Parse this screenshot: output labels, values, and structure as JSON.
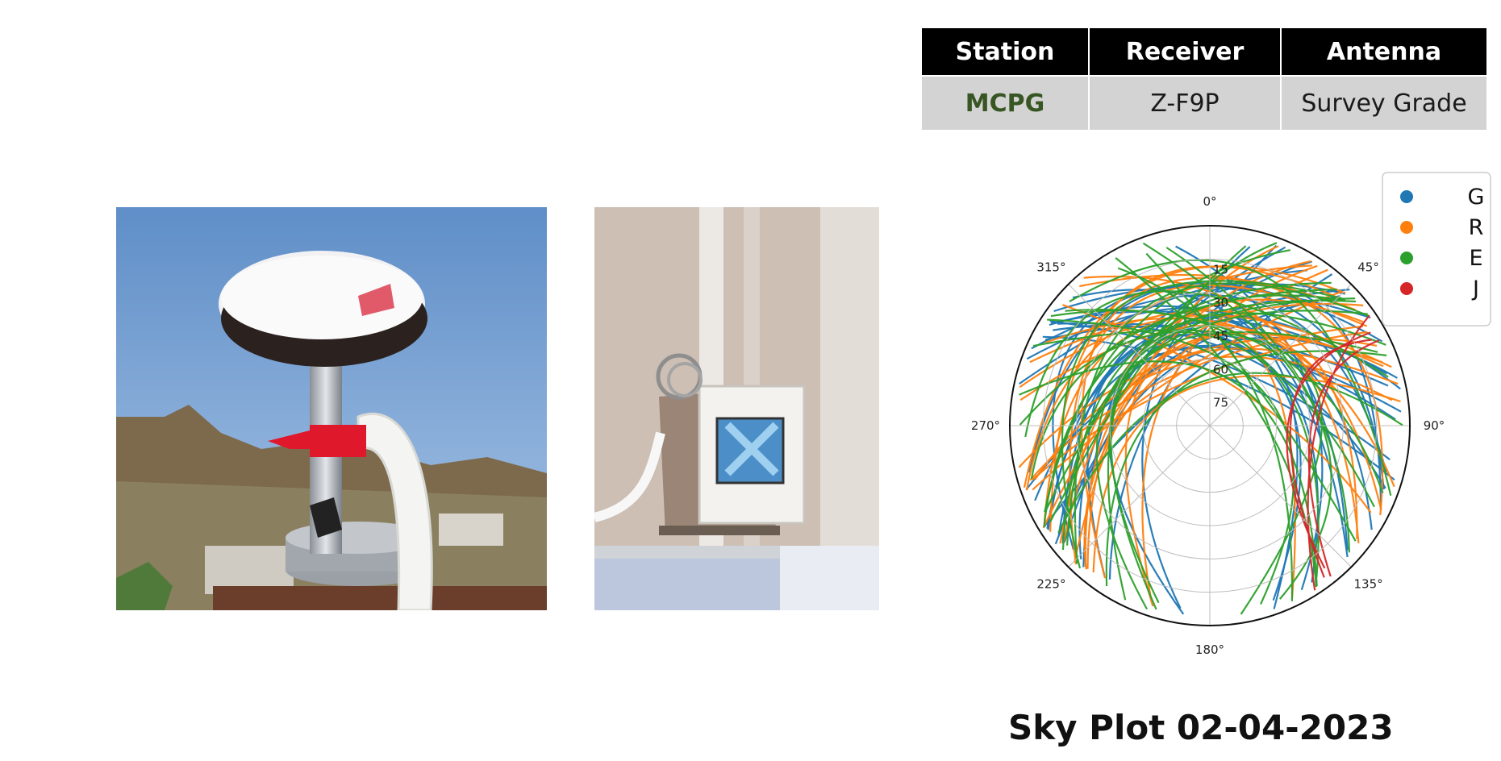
{
  "table": {
    "headers": [
      "Station",
      "Receiver",
      "Antenna"
    ],
    "row": [
      "MCPG",
      "Z-F9P",
      "Survey Grade"
    ]
  },
  "chart_data": {
    "type": "polar-skyplot",
    "azimuth_labels": [
      "0°",
      "45°",
      "90°",
      "135°",
      "180°",
      "225°",
      "270°",
      "315°"
    ],
    "elevation_rings": [
      "15",
      "30",
      "45",
      "60",
      "75"
    ],
    "legend": [
      {
        "name": "G",
        "color": "#1f77b4"
      },
      {
        "name": "R",
        "color": "#ff7f0e"
      },
      {
        "name": "E",
        "color": "#2ca02c"
      },
      {
        "name": "J",
        "color": "#d62728"
      }
    ],
    "legend_position": "top-right",
    "grid": true
  },
  "caption": "Sky Plot 02-04-2023"
}
